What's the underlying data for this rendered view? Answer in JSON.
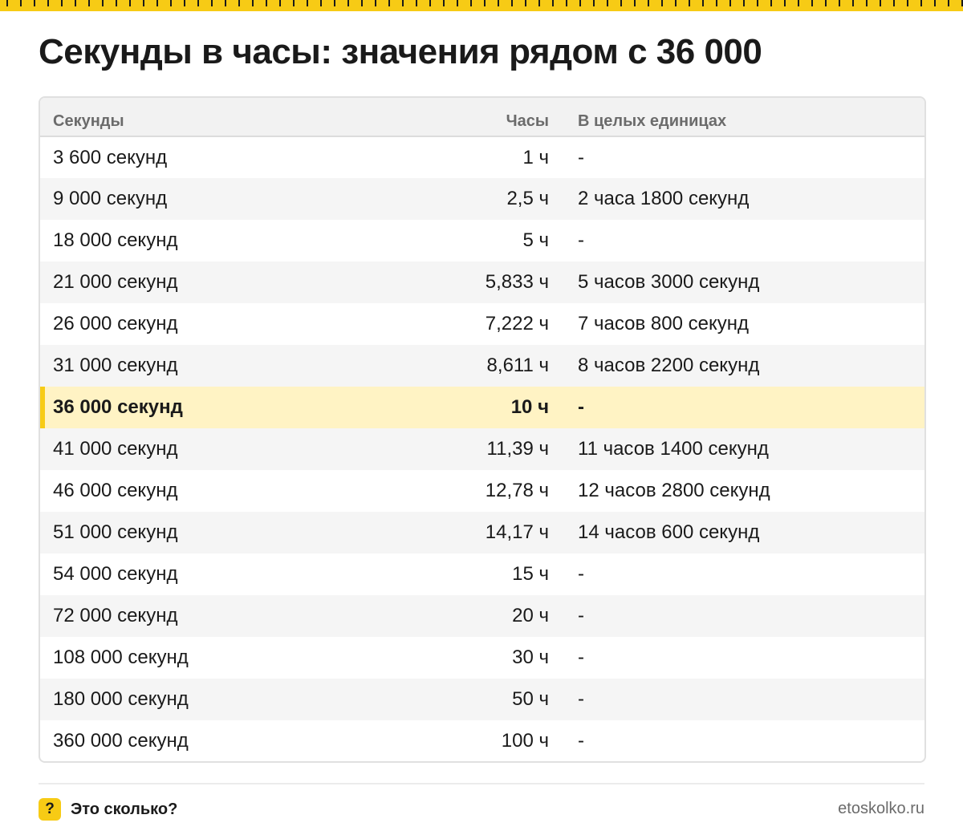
{
  "colors": {
    "accent": "#f7cb15",
    "highlight_row": "#fff3c4",
    "header_bg": "#f2f2f2",
    "stripe": "#f5f5f5"
  },
  "title": "Секунды в часы: значения рядом с 36 000",
  "table": {
    "headers": [
      "Секунды",
      "Часы",
      "В целых единицах"
    ],
    "rows": [
      [
        "3 600 секунд",
        "1 ч",
        "-"
      ],
      [
        "9 000 секунд",
        "2,5 ч",
        "2 часа 1800 секунд"
      ],
      [
        "18 000 секунд",
        "5 ч",
        "-"
      ],
      [
        "21 000 секунд",
        "5,833 ч",
        "5 часов 3000 секунд"
      ],
      [
        "26 000 секунд",
        "7,222 ч",
        "7 часов 800 секунд"
      ],
      [
        "31 000 секунд",
        "8,611 ч",
        "8 часов 2200 секунд"
      ],
      [
        "36 000 секунд",
        "10 ч",
        "-"
      ],
      [
        "41 000 секунд",
        "11,39 ч",
        "11 часов 1400 секунд"
      ],
      [
        "46 000 секунд",
        "12,78 ч",
        "12 часов 2800 секунд"
      ],
      [
        "51 000 секунд",
        "14,17 ч",
        "14 часов 600 секунд"
      ],
      [
        "54 000 секунд",
        "15 ч",
        "-"
      ],
      [
        "72 000 секунд",
        "20 ч",
        "-"
      ],
      [
        "108 000 секунд",
        "30 ч",
        "-"
      ],
      [
        "180 000 секунд",
        "50 ч",
        "-"
      ],
      [
        "360 000 секунд",
        "100 ч",
        "-"
      ]
    ],
    "highlighted_row": "36 000 секунд"
  },
  "footer": {
    "icon": "question-mark-icon",
    "icon_glyph": "?",
    "brand": "Это сколько?",
    "site": "etoskolko.ru"
  }
}
